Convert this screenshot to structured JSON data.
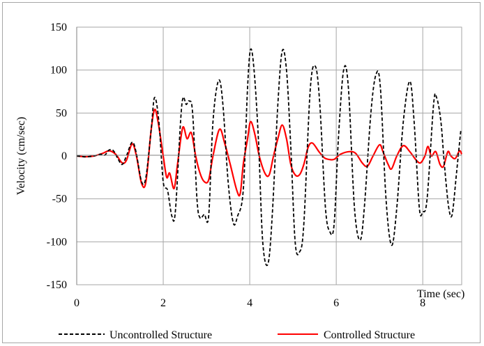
{
  "chart_data": {
    "type": "line",
    "title": "",
    "xlabel": "Time (sec)",
    "ylabel": "Velocity (cm/sec)",
    "xlim": [
      0,
      8.9
    ],
    "ylim": [
      -150,
      150
    ],
    "x_ticks": [
      0,
      2,
      4,
      6,
      8
    ],
    "y_ticks": [
      150,
      100,
      50,
      0,
      -50,
      -100,
      -150
    ],
    "grid": true,
    "legend_position": "bottom",
    "series": [
      {
        "name": "Uncontrolled Structure",
        "color": "#000000",
        "style": "dashed",
        "points": [
          [
            0,
            0
          ],
          [
            0.2,
            -1
          ],
          [
            0.4,
            0
          ],
          [
            0.55,
            2
          ],
          [
            0.65,
            1
          ],
          [
            0.75,
            7
          ],
          [
            0.85,
            6
          ],
          [
            0.95,
            -3
          ],
          [
            1.05,
            -10
          ],
          [
            1.15,
            0
          ],
          [
            1.28,
            16
          ],
          [
            1.37,
            5
          ],
          [
            1.5,
            -30
          ],
          [
            1.6,
            -25
          ],
          [
            1.72,
            30
          ],
          [
            1.8,
            68
          ],
          [
            1.9,
            40
          ],
          [
            2.0,
            -30
          ],
          [
            2.1,
            -40
          ],
          [
            2.2,
            -70
          ],
          [
            2.28,
            -65
          ],
          [
            2.4,
            40
          ],
          [
            2.46,
            68
          ],
          [
            2.53,
            60
          ],
          [
            2.6,
            64
          ],
          [
            2.68,
            50
          ],
          [
            2.78,
            -50
          ],
          [
            2.85,
            -72
          ],
          [
            2.95,
            -68
          ],
          [
            3.05,
            -70
          ],
          [
            3.15,
            40
          ],
          [
            3.28,
            88
          ],
          [
            3.38,
            60
          ],
          [
            3.5,
            -30
          ],
          [
            3.62,
            -78
          ],
          [
            3.72,
            -70
          ],
          [
            3.85,
            -40
          ],
          [
            3.95,
            80
          ],
          [
            4.02,
            124
          ],
          [
            4.1,
            100
          ],
          [
            4.2,
            20
          ],
          [
            4.3,
            -100
          ],
          [
            4.42,
            -126
          ],
          [
            4.52,
            -70
          ],
          [
            4.65,
            60
          ],
          [
            4.75,
            122
          ],
          [
            4.85,
            100
          ],
          [
            4.95,
            10
          ],
          [
            5.05,
            -100
          ],
          [
            5.15,
            -112
          ],
          [
            5.25,
            -80
          ],
          [
            5.4,
            78
          ],
          [
            5.52,
            104
          ],
          [
            5.62,
            60
          ],
          [
            5.75,
            -60
          ],
          [
            5.85,
            -88
          ],
          [
            5.95,
            -80
          ],
          [
            6.05,
            20
          ],
          [
            6.17,
            100
          ],
          [
            6.28,
            80
          ],
          [
            6.42,
            -60
          ],
          [
            6.55,
            -98
          ],
          [
            6.65,
            -60
          ],
          [
            6.8,
            50
          ],
          [
            6.92,
            95
          ],
          [
            7.02,
            80
          ],
          [
            7.15,
            -50
          ],
          [
            7.28,
            -104
          ],
          [
            7.4,
            -60
          ],
          [
            7.55,
            40
          ],
          [
            7.7,
            87
          ],
          [
            7.8,
            40
          ],
          [
            7.92,
            -60
          ],
          [
            8.0,
            -65
          ],
          [
            8.1,
            -50
          ],
          [
            8.25,
            60
          ],
          [
            8.32,
            68
          ],
          [
            8.42,
            40
          ],
          [
            8.5,
            -10
          ],
          [
            8.6,
            -60
          ],
          [
            8.68,
            -68
          ],
          [
            8.78,
            -20
          ],
          [
            8.88,
            30
          ]
        ]
      },
      {
        "name": "Controlled Structure",
        "color": "#ff0000",
        "style": "solid",
        "points": [
          [
            0,
            0
          ],
          [
            0.2,
            -1
          ],
          [
            0.4,
            0
          ],
          [
            0.6,
            3
          ],
          [
            0.75,
            6
          ],
          [
            0.9,
            2
          ],
          [
            1.05,
            -8
          ],
          [
            1.15,
            -5
          ],
          [
            1.28,
            14
          ],
          [
            1.38,
            0
          ],
          [
            1.5,
            -32
          ],
          [
            1.6,
            -30
          ],
          [
            1.72,
            30
          ],
          [
            1.8,
            54
          ],
          [
            1.88,
            40
          ],
          [
            2.0,
            0
          ],
          [
            2.08,
            -25
          ],
          [
            2.15,
            -20
          ],
          [
            2.25,
            -38
          ],
          [
            2.33,
            -10
          ],
          [
            2.45,
            33
          ],
          [
            2.55,
            20
          ],
          [
            2.65,
            27
          ],
          [
            2.75,
            0
          ],
          [
            2.85,
            -20
          ],
          [
            2.95,
            -30
          ],
          [
            3.05,
            -28
          ],
          [
            3.15,
            0
          ],
          [
            3.3,
            31
          ],
          [
            3.42,
            15
          ],
          [
            3.55,
            -10
          ],
          [
            3.7,
            -40
          ],
          [
            3.78,
            -44
          ],
          [
            3.85,
            -10
          ],
          [
            3.95,
            20
          ],
          [
            4.02,
            40
          ],
          [
            4.12,
            25
          ],
          [
            4.22,
            0
          ],
          [
            4.35,
            -20
          ],
          [
            4.45,
            -22
          ],
          [
            4.55,
            0
          ],
          [
            4.65,
            20
          ],
          [
            4.75,
            36
          ],
          [
            4.85,
            20
          ],
          [
            4.95,
            -10
          ],
          [
            5.05,
            -22
          ],
          [
            5.15,
            -22
          ],
          [
            5.25,
            -10
          ],
          [
            5.35,
            10
          ],
          [
            5.45,
            15
          ],
          [
            5.6,
            5
          ],
          [
            5.72,
            -2
          ],
          [
            5.82,
            -4
          ],
          [
            5.95,
            -4
          ],
          [
            6.1,
            2
          ],
          [
            6.3,
            5
          ],
          [
            6.45,
            3
          ],
          [
            6.6,
            -8
          ],
          [
            6.72,
            -12
          ],
          [
            6.85,
            0
          ],
          [
            7.0,
            13
          ],
          [
            7.08,
            5
          ],
          [
            7.2,
            -10
          ],
          [
            7.28,
            -15
          ],
          [
            7.4,
            0
          ],
          [
            7.55,
            12
          ],
          [
            7.7,
            5
          ],
          [
            7.85,
            -5
          ],
          [
            7.95,
            -8
          ],
          [
            8.05,
            0
          ],
          [
            8.12,
            11
          ],
          [
            8.2,
            0
          ],
          [
            8.3,
            5
          ],
          [
            8.4,
            -10
          ],
          [
            8.48,
            -12
          ],
          [
            8.58,
            5
          ],
          [
            8.65,
            0
          ],
          [
            8.75,
            -3
          ],
          [
            8.85,
            6
          ],
          [
            8.9,
            2
          ]
        ]
      }
    ]
  }
}
